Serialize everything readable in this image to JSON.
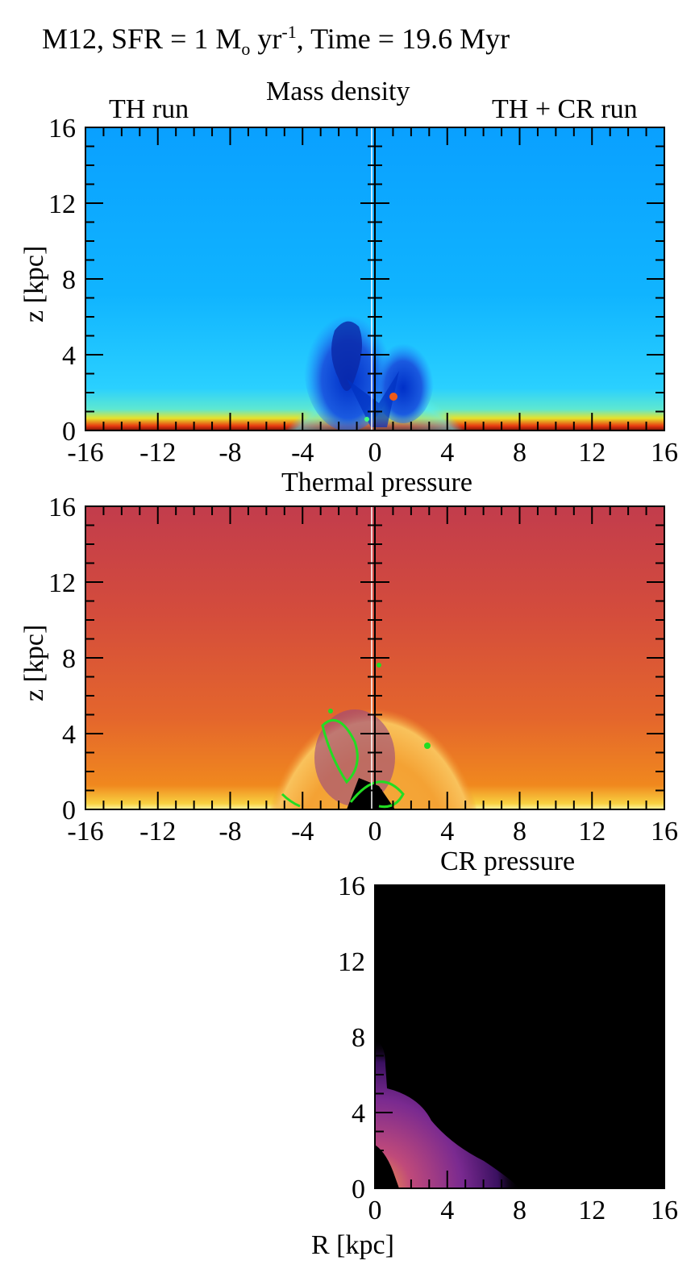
{
  "figure": {
    "title_parts": {
      "prefix": "M12, SFR = 1 M",
      "sub": "o",
      "mid": " yr",
      "sup": "-1",
      "suffix": ", Time = 19.6 Myr"
    },
    "panels": [
      {
        "title": "Mass density",
        "left_label": "TH run",
        "right_label": "TH + CR run",
        "ylabel": "z [kpc]",
        "x_ticks": [
          "-16",
          "-12",
          "-8",
          "-4",
          "0",
          "4",
          "8",
          "12",
          "16"
        ],
        "y_ticks": [
          "0",
          "4",
          "8",
          "12",
          "16"
        ],
        "colormap": "blue-cyan-yellow-red"
      },
      {
        "title": "Thermal pressure",
        "ylabel": "z [kpc]",
        "x_ticks": [
          "-16",
          "-12",
          "-8",
          "-4",
          "0",
          "4",
          "8",
          "12",
          "16"
        ],
        "y_ticks": [
          "0",
          "4",
          "8",
          "12",
          "16"
        ],
        "colormap": "red-orange-yellow",
        "contour_color": "#22dd22"
      },
      {
        "title": "CR pressure",
        "xlabel": "R [kpc]",
        "x_ticks": [
          "0",
          "4",
          "8",
          "12",
          "16"
        ],
        "y_ticks": [
          "0",
          "4",
          "8",
          "12",
          "16"
        ],
        "colormap": "black-purple-orange"
      }
    ]
  }
}
